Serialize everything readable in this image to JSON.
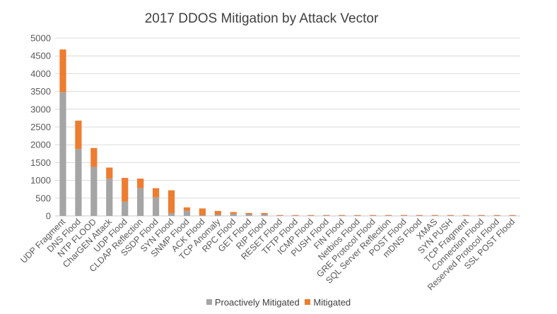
{
  "chart_data": {
    "type": "bar",
    "stacked": true,
    "title": "2017 DDOS Mitigation by Attack Vector",
    "xlabel": "",
    "ylabel": "",
    "ylim": [
      0,
      5000
    ],
    "yticks": [
      0,
      500,
      1000,
      1500,
      2000,
      2500,
      3000,
      3500,
      4000,
      4500,
      5000
    ],
    "grid": true,
    "legend_position": "bottom",
    "categories": [
      "UDP Fragment",
      "DNS Flood",
      "NTP FLOOD",
      "CharGEN Attack",
      "UDP Flood",
      "CLDAP Reflection",
      "SSDP Flood",
      "SYN Flood",
      "SNMP Flood",
      "ACK Flood",
      "TCP Anomaly",
      "RPC Flood",
      "GET Flood",
      "RIP Flood",
      "RESET Flood",
      "TFTP Flood",
      "ICMP Flood",
      "PUSH Flood",
      "FIN Flood",
      "Netbios Flood",
      "GRE Protocol Flood",
      "SQL Server Reflection",
      "POST Flood",
      "mDNS Flood",
      "XMAS",
      "SYN PUSH",
      "TCP Fragment",
      "Connection Flood",
      "Reserved Protocol Flood",
      "SSL POST Flood"
    ],
    "series": [
      {
        "name": "Proactively Mitigated",
        "color": "#a5a5a5",
        "values": [
          3480,
          1880,
          1380,
          1050,
          400,
          780,
          520,
          80,
          150,
          20,
          40,
          60,
          40,
          40,
          10,
          10,
          10,
          10,
          10,
          10,
          10,
          10,
          10,
          10,
          10,
          10,
          10,
          10,
          10,
          10
        ]
      },
      {
        "name": "Mitigated",
        "color": "#ed7d31",
        "values": [
          1200,
          800,
          530,
          310,
          670,
          270,
          260,
          640,
          90,
          190,
          100,
          50,
          40,
          40,
          15,
          15,
          15,
          15,
          15,
          15,
          15,
          15,
          15,
          15,
          15,
          15,
          15,
          15,
          15,
          15
        ]
      }
    ]
  }
}
